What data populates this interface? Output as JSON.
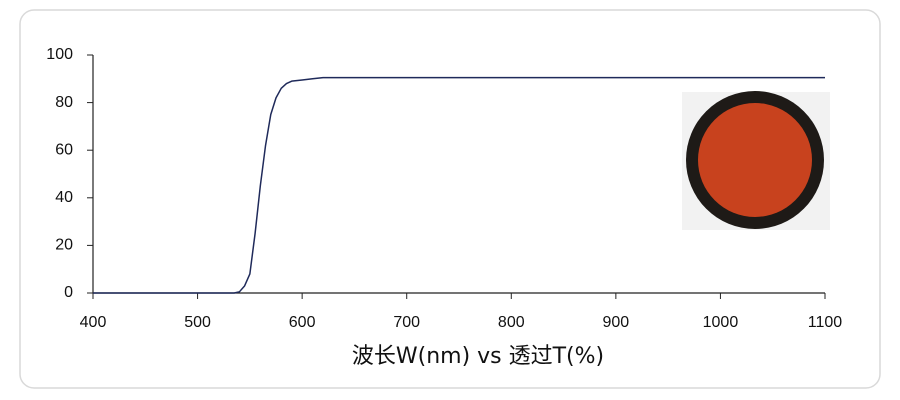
{
  "chart_data": {
    "type": "line",
    "x_label": "波长W(nm) vs 透过T(%)",
    "x": [
      400,
      500,
      535,
      540,
      545,
      550,
      555,
      560,
      565,
      570,
      575,
      580,
      585,
      590,
      600,
      610,
      620,
      700,
      800,
      900,
      1000,
      1100
    ],
    "values": [
      0,
      0,
      0,
      0.5,
      3,
      8,
      25,
      45,
      62,
      75,
      82,
      86,
      88,
      89,
      89.5,
      90,
      90.5,
      90.5,
      90.5,
      90.5,
      90.5,
      90.5
    ],
    "color": "#1f2a5a",
    "xlim": [
      400,
      1100
    ],
    "xticks": [
      400,
      500,
      600,
      700,
      800,
      900,
      1000,
      1100
    ],
    "ylim": [
      0,
      100
    ],
    "yticks": [
      0,
      20,
      40,
      60,
      80,
      100
    ]
  }
}
